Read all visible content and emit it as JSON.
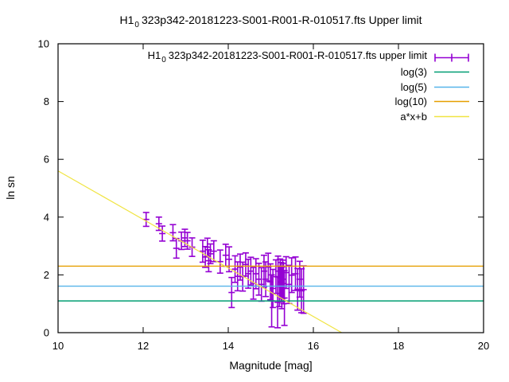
{
  "header": {
    "title_main": "H1",
    "title_sub": "0",
    "title_rest": "323p342-20181223-S001-R001-R-010517.fts Upper limit"
  },
  "legend": {
    "position": "top-right",
    "entries": [
      {
        "label_main": "H1",
        "label_sub": "0",
        "label_rest": "323p342-20181223-S001-R001-R-010517.fts upper limit",
        "color": "#9400d3",
        "sample": "errorbar"
      },
      {
        "label": "log(3)",
        "color": "#009e73",
        "sample": "line"
      },
      {
        "label": "log(5)",
        "color": "#56b4e9",
        "sample": "line"
      },
      {
        "label": "log(10)",
        "color": "#e69f00",
        "sample": "line"
      },
      {
        "label": "a*x+b",
        "color": "#f0e442",
        "sample": "line"
      }
    ]
  },
  "chart_data": {
    "type": "scatter",
    "title": "H1_0 323p342-20181223-S001-R001-R-010517.fts Upper limit",
    "xlabel": "Magnitude [mag]",
    "ylabel": "ln sn",
    "xlim": [
      10,
      20
    ],
    "ylim": [
      0,
      10
    ],
    "xticks": [
      10,
      12,
      14,
      16,
      18,
      20
    ],
    "yticks": [
      0,
      2,
      4,
      6,
      8,
      10
    ],
    "grid": false,
    "background": "#ffffff",
    "axis_color": "#000000",
    "series": [
      {
        "name": "H1_0 323p342-20181223-S001-R001-R-010517.fts upper limit",
        "type": "errorbars",
        "color": "#9400d3",
        "points_format": [
          "magnitude",
          "ln_sn",
          "err"
        ],
        "points": [
          [
            12.07,
            3.92,
            0.24
          ],
          [
            12.37,
            3.77,
            0.23
          ],
          [
            12.45,
            3.43,
            0.26
          ],
          [
            12.7,
            3.46,
            0.28
          ],
          [
            12.78,
            2.92,
            0.34
          ],
          [
            12.9,
            3.18,
            0.3
          ],
          [
            12.98,
            3.28,
            0.3
          ],
          [
            13.04,
            3.18,
            0.29
          ],
          [
            13.15,
            2.96,
            0.32
          ],
          [
            13.4,
            2.82,
            0.38
          ],
          [
            13.46,
            2.62,
            0.36
          ],
          [
            13.51,
            2.96,
            0.31
          ],
          [
            13.54,
            2.49,
            0.38
          ],
          [
            13.58,
            2.73,
            0.34
          ],
          [
            13.66,
            2.82,
            0.36
          ],
          [
            13.81,
            2.46,
            0.4
          ],
          [
            13.94,
            2.68,
            0.38
          ],
          [
            14.02,
            2.54,
            0.43
          ],
          [
            14.08,
            1.39,
            0.52
          ],
          [
            14.16,
            2.2,
            0.46
          ],
          [
            14.22,
            1.95,
            0.5
          ],
          [
            14.28,
            2.27,
            0.45
          ],
          [
            14.34,
            1.94,
            0.5
          ],
          [
            14.41,
            2.36,
            0.4
          ],
          [
            14.47,
            2.04,
            0.5
          ],
          [
            14.53,
            2.13,
            0.48
          ],
          [
            14.59,
            1.71,
            0.55
          ],
          [
            14.65,
            2.04,
            0.52
          ],
          [
            14.72,
            1.85,
            0.55
          ],
          [
            14.78,
            1.67,
            0.58
          ],
          [
            14.84,
            2.13,
            0.55
          ],
          [
            14.88,
            1.85,
            0.6
          ],
          [
            14.94,
            2.27,
            0.48
          ],
          [
            14.99,
            1.76,
            0.62
          ],
          [
            15.02,
            1.1,
            0.9
          ],
          [
            15.05,
            1.53,
            0.66
          ],
          [
            15.12,
            1.94,
            0.58
          ],
          [
            15.16,
            1.05,
            0.88
          ],
          [
            15.17,
            2.13,
            0.52
          ],
          [
            15.2,
            1.6,
            0.7
          ],
          [
            15.22,
            1.9,
            0.65
          ],
          [
            15.24,
            1.75,
            0.68
          ],
          [
            15.26,
            1.55,
            0.72
          ],
          [
            15.28,
            1.85,
            0.66
          ],
          [
            15.3,
            1.7,
            0.7
          ],
          [
            15.32,
            1.2,
            0.95
          ],
          [
            15.36,
            2.08,
            0.55
          ],
          [
            15.43,
            1.67,
            0.66
          ],
          [
            15.49,
            1.99,
            0.6
          ],
          [
            15.58,
            2.04,
            0.58
          ],
          [
            15.63,
            1.5,
            0.72
          ],
          [
            15.68,
            1.85,
            0.62
          ],
          [
            15.72,
            1.45,
            0.76
          ],
          [
            15.77,
            1.49,
            0.82
          ]
        ]
      },
      {
        "name": "log(3)",
        "type": "hline",
        "color": "#009e73",
        "value": 1.0986
      },
      {
        "name": "log(5)",
        "type": "hline",
        "color": "#56b4e9",
        "value": 1.6094
      },
      {
        "name": "log(10)",
        "type": "hline",
        "color": "#e69f00",
        "value": 2.3026
      },
      {
        "name": "a*x+b",
        "type": "linear-fit",
        "color": "#f0e442",
        "a": -0.84,
        "b": 14.0
      }
    ]
  }
}
